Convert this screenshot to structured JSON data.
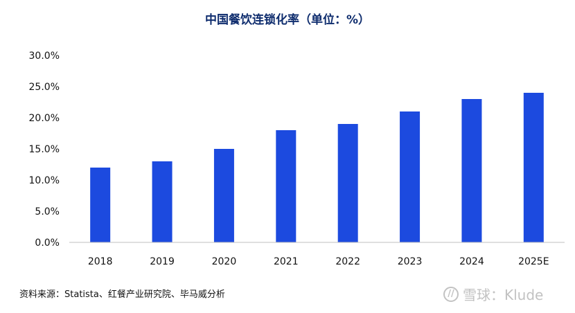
{
  "chart_data": {
    "type": "bar",
    "title": "中国餐饮连锁化率（单位：%）",
    "categories": [
      "2018",
      "2019",
      "2020",
      "2021",
      "2022",
      "2023",
      "2024",
      "2025E"
    ],
    "values": [
      12,
      13,
      15,
      18,
      19,
      21,
      23,
      24
    ],
    "ylim": [
      0,
      30
    ],
    "yticks": [
      "0.0%",
      "5.0%",
      "10.0%",
      "15.0%",
      "20.0%",
      "25.0%",
      "30.0%"
    ],
    "xlabel": "",
    "ylabel": "",
    "grid": false,
    "bar_color": "#1c4adf"
  },
  "footer": {
    "source": "资料来源：Statista、红餐产业研究院、毕马威分析"
  },
  "watermark": {
    "logo_glyph": "//",
    "text": "雪球：Klude"
  }
}
